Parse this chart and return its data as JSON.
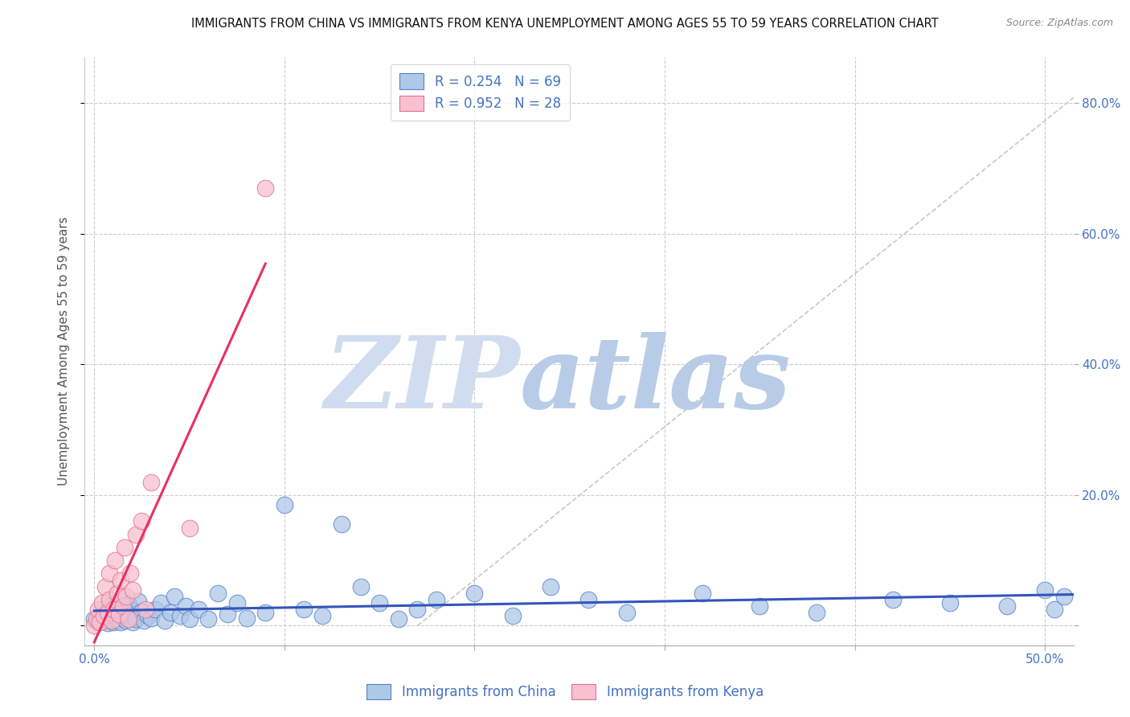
{
  "title": "IMMIGRANTS FROM CHINA VS IMMIGRANTS FROM KENYA UNEMPLOYMENT AMONG AGES 55 TO 59 YEARS CORRELATION CHART",
  "source": "Source: ZipAtlas.com",
  "ylabel": "Unemployment Among Ages 55 to 59 years",
  "xlim": [
    -0.005,
    0.515
  ],
  "ylim": [
    -0.03,
    0.87
  ],
  "xticks": [
    0.0,
    0.1,
    0.2,
    0.3,
    0.4,
    0.5
  ],
  "xtick_labels": [
    "0.0%",
    "",
    "",
    "",
    "",
    "50.0%"
  ],
  "yticks": [
    0.0,
    0.2,
    0.4,
    0.6,
    0.8
  ],
  "ytick_labels": [
    "",
    "20.0%",
    "40.0%",
    "60.0%",
    "80.0%"
  ],
  "china_face_color": "#aec8e8",
  "china_edge_color": "#5580c8",
  "kenya_face_color": "#f8c0d0",
  "kenya_edge_color": "#e07090",
  "china_trend_color": "#3355bb",
  "kenya_trend_color": "#e83060",
  "diag_color": "#c8c8c8",
  "china_R": 0.254,
  "china_N": 69,
  "kenya_R": 0.952,
  "kenya_N": 28,
  "watermark_zip": "ZIP",
  "watermark_atlas": "atlas",
  "watermark_color_zip": "#d0dcf0",
  "watermark_color_atlas": "#b8cce8",
  "legend_label_china": "Immigrants from China",
  "legend_label_kenya": "Immigrants from Kenya",
  "tick_label_color": "#4472c4",
  "china_x": [
    0.0,
    0.002,
    0.003,
    0.005,
    0.005,
    0.007,
    0.008,
    0.008,
    0.009,
    0.01,
    0.01,
    0.011,
    0.012,
    0.013,
    0.013,
    0.014,
    0.015,
    0.015,
    0.016,
    0.017,
    0.018,
    0.018,
    0.019,
    0.02,
    0.02,
    0.022,
    0.023,
    0.025,
    0.026,
    0.028,
    0.03,
    0.032,
    0.035,
    0.037,
    0.04,
    0.042,
    0.045,
    0.048,
    0.05,
    0.055,
    0.06,
    0.065,
    0.07,
    0.075,
    0.08,
    0.09,
    0.1,
    0.11,
    0.12,
    0.13,
    0.14,
    0.15,
    0.16,
    0.17,
    0.18,
    0.2,
    0.22,
    0.24,
    0.26,
    0.28,
    0.32,
    0.35,
    0.38,
    0.42,
    0.45,
    0.48,
    0.5,
    0.505,
    0.51
  ],
  "china_y": [
    0.01,
    0.005,
    0.015,
    0.008,
    0.025,
    0.004,
    0.018,
    0.03,
    0.01,
    0.006,
    0.022,
    0.035,
    0.008,
    0.015,
    0.028,
    0.005,
    0.012,
    0.04,
    0.02,
    0.008,
    0.032,
    0.015,
    0.025,
    0.005,
    0.018,
    0.01,
    0.038,
    0.022,
    0.008,
    0.015,
    0.012,
    0.025,
    0.035,
    0.008,
    0.02,
    0.045,
    0.015,
    0.03,
    0.01,
    0.025,
    0.01,
    0.05,
    0.018,
    0.035,
    0.012,
    0.02,
    0.185,
    0.025,
    0.015,
    0.155,
    0.06,
    0.035,
    0.01,
    0.025,
    0.04,
    0.05,
    0.015,
    0.06,
    0.04,
    0.02,
    0.05,
    0.03,
    0.02,
    0.04,
    0.035,
    0.03,
    0.055,
    0.025,
    0.045
  ],
  "kenya_x": [
    0.0,
    0.001,
    0.002,
    0.003,
    0.004,
    0.005,
    0.006,
    0.007,
    0.008,
    0.008,
    0.009,
    0.01,
    0.011,
    0.012,
    0.013,
    0.014,
    0.015,
    0.016,
    0.017,
    0.018,
    0.019,
    0.02,
    0.022,
    0.025,
    0.027,
    0.03,
    0.05,
    0.09
  ],
  "kenya_y": [
    0.0,
    0.01,
    0.025,
    0.005,
    0.035,
    0.015,
    0.06,
    0.02,
    0.04,
    0.08,
    0.008,
    0.025,
    0.1,
    0.05,
    0.018,
    0.07,
    0.03,
    0.12,
    0.045,
    0.01,
    0.08,
    0.055,
    0.14,
    0.16,
    0.025,
    0.22,
    0.15,
    0.67
  ]
}
